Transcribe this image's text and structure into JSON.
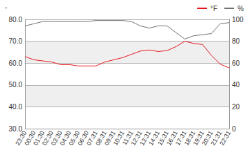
{
  "chart_data": {
    "type": "line",
    "title": "-",
    "categories": [
      "23:30",
      "00:30",
      "01:30",
      "02:30",
      "03:30",
      "04:30",
      "05:30",
      "06:30",
      "07:31",
      "08:31",
      "09:31",
      "10:31",
      "11:31",
      "12:31",
      "13:31",
      "14:31",
      "15:31",
      "16:31",
      "17:31",
      "18:31",
      "19:31",
      "20:31",
      "21:31",
      "22:31"
    ],
    "series": [
      {
        "name": "°F",
        "color": "#e8141b",
        "values": [
          63,
          61.5,
          61,
          60.5,
          59.3,
          59.3,
          58.7,
          58.7,
          58.7,
          60.5,
          61.5,
          62.5,
          64,
          65.5,
          66,
          65.3,
          65.7,
          67.5,
          70,
          69,
          68.5,
          63.5,
          59.5,
          57.8
        ]
      },
      {
        "name": "%",
        "color": "#707070",
        "axis": "y2",
        "values": [
          94,
          96,
          98,
          98,
          98,
          98,
          98,
          98,
          99,
          99,
          99,
          99,
          98,
          94,
          92,
          94,
          94,
          88,
          82,
          85,
          86,
          87,
          96,
          97
        ]
      }
    ],
    "ylim": [
      30,
      80
    ],
    "yticks": [
      {
        "value": 30,
        "label": "30.0"
      },
      {
        "value": 40,
        "label": "40.0"
      },
      {
        "value": 50,
        "label": "50.0"
      },
      {
        "value": 60,
        "label": "60.0"
      },
      {
        "value": 70,
        "label": "70.0"
      },
      {
        "value": 80,
        "label": "80.0"
      }
    ],
    "y2lim": [
      0,
      100
    ],
    "y2ticks": [
      0,
      20,
      40,
      60,
      80,
      100
    ],
    "grid": true,
    "legend": "top-right"
  }
}
